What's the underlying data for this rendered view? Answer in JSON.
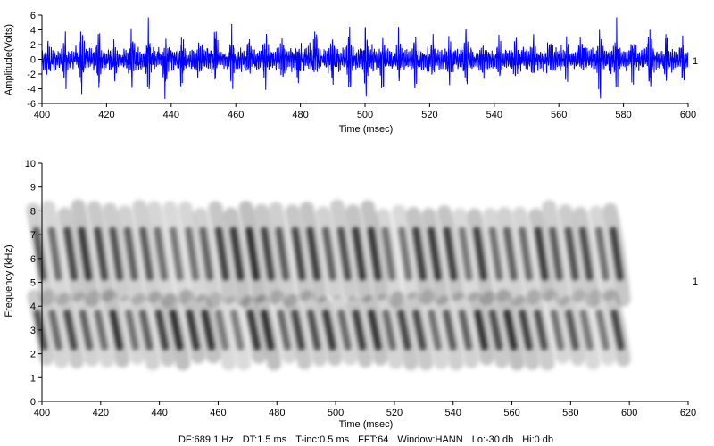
{
  "chart_data": [
    {
      "type": "line",
      "title": "",
      "xlabel": "Time (msec)",
      "ylabel": "Amplitude(Volts)",
      "xlim": [
        400,
        600
      ],
      "ylim": [
        -6,
        6
      ],
      "xticks": [
        400,
        420,
        440,
        460,
        480,
        500,
        520,
        540,
        560,
        580,
        600
      ],
      "yticks": [
        6,
        4,
        2,
        0,
        -2,
        -4,
        -6
      ],
      "grid": false,
      "series": [
        {
          "name": "",
          "color": "#0000ff",
          "channel_label": "1",
          "signal": {
            "period_ms": 5.17,
            "first_peak_ms": 402,
            "peak_amplitude_range_volts": [
              3,
              5.5
            ],
            "ambient_amplitude_volts": 1.5
          }
        }
      ]
    },
    {
      "type": "heatmap",
      "title": "",
      "xlabel": "Time (msec)",
      "ylabel": "Frequency (kHz)",
      "xlim": [
        400,
        620
      ],
      "ylim": [
        0,
        10
      ],
      "xticks": [
        400,
        420,
        440,
        460,
        480,
        500,
        520,
        540,
        560,
        580,
        600,
        620
      ],
      "yticks": [
        10,
        9,
        8,
        7,
        6,
        5,
        4,
        3,
        2,
        1,
        0
      ],
      "grid": false,
      "colormap": "grayscale",
      "channel_label": "1",
      "data_x_range_ms": [
        400,
        600
      ],
      "stripe_period_ms": 5.17,
      "bands": [
        {
          "freq_center_khz": 3.0,
          "freq_halfwidth_khz": 1.3,
          "slope_ms_per_khz": -1.6,
          "min_khz": 1.6,
          "max_khz": 4.4
        },
        {
          "freq_center_khz": 6.2,
          "freq_halfwidth_khz": 1.8,
          "slope_ms_per_khz": -1.2,
          "min_khz": 4.0,
          "max_khz": 8.2
        }
      ],
      "parameters": {
        "df": "DF:689.1 Hz",
        "dt": "DT:1.5 ms",
        "t_inc": "T-inc:0.5 ms",
        "fft": "FFT:64",
        "window": "Window:HANN",
        "lo": "Lo:-30 db",
        "hi": "Hi:0 db"
      }
    }
  ]
}
